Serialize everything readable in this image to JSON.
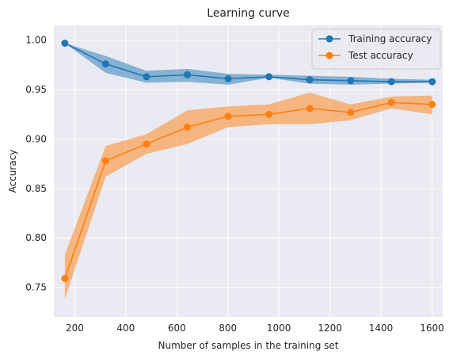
{
  "chart_data": {
    "type": "line",
    "title": "Learning curve",
    "xlabel": "Number of samples in the training set",
    "ylabel": "Accuracy",
    "xlim": [
      118,
      1642
    ],
    "ylim": [
      0.72,
      1.015
    ],
    "xticks": [
      200,
      400,
      600,
      800,
      1000,
      1200,
      1400,
      1600
    ],
    "xtick_labels": [
      "200",
      "400",
      "600",
      "800",
      "1000",
      "1200",
      "1400",
      "1600"
    ],
    "yticks": [
      0.75,
      0.8,
      0.85,
      0.9,
      0.95,
      1.0
    ],
    "ytick_labels": [
      "0.75",
      "0.80",
      "0.85",
      "0.90",
      "0.95",
      "1.00"
    ],
    "grid": true,
    "legend_position": "top-right",
    "x": [
      161,
      321,
      481,
      641,
      801,
      961,
      1121,
      1281,
      1441,
      1601
    ],
    "series": [
      {
        "name": "Training accuracy",
        "color": "#1f77b4",
        "values": [
          0.997,
          0.976,
          0.963,
          0.965,
          0.961,
          0.963,
          0.96,
          0.959,
          0.958,
          0.958
        ],
        "lower": [
          0.997,
          0.967,
          0.957,
          0.958,
          0.955,
          0.962,
          0.956,
          0.955,
          0.956,
          0.957
        ],
        "upper": [
          0.997,
          0.984,
          0.969,
          0.971,
          0.966,
          0.965,
          0.964,
          0.963,
          0.961,
          0.96
        ]
      },
      {
        "name": "Test accuracy",
        "color": "#ff7f0e",
        "values": [
          0.759,
          0.878,
          0.895,
          0.912,
          0.923,
          0.925,
          0.931,
          0.927,
          0.937,
          0.935
        ],
        "lower": [
          0.738,
          0.862,
          0.885,
          0.895,
          0.912,
          0.915,
          0.915,
          0.919,
          0.931,
          0.925
        ],
        "upper": [
          0.783,
          0.893,
          0.905,
          0.929,
          0.933,
          0.935,
          0.947,
          0.935,
          0.943,
          0.944
        ]
      }
    ]
  }
}
